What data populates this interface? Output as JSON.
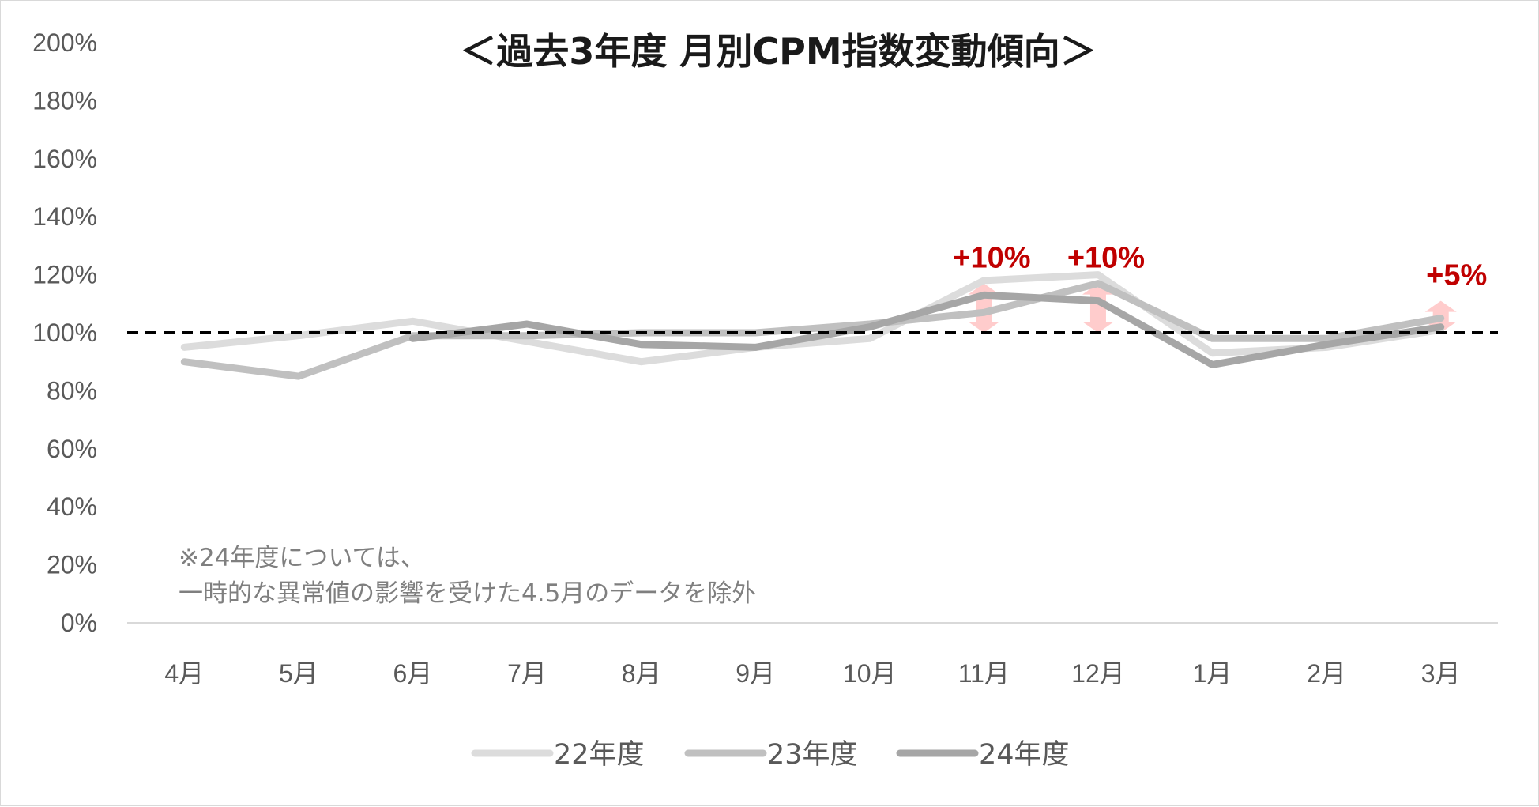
{
  "chart_data": {
    "type": "line",
    "title": "＜過去3年度 月別CPM指数変動傾向＞",
    "xlabel": "",
    "ylabel": "",
    "categories": [
      "4月",
      "5月",
      "6月",
      "7月",
      "8月",
      "9月",
      "10月",
      "11月",
      "12月",
      "1月",
      "2月",
      "3月"
    ],
    "ylim": [
      0,
      200
    ],
    "yticks": [
      "0%",
      "20%",
      "40%",
      "60%",
      "80%",
      "100%",
      "120%",
      "140%",
      "160%",
      "180%",
      "200%"
    ],
    "grid": false,
    "legend_position": "bottom",
    "series": [
      {
        "name": "22年度",
        "color": "#dcdcdc",
        "values": [
          95,
          99,
          104,
          97,
          90,
          95,
          98,
          118,
          120,
          93,
          95,
          101
        ]
      },
      {
        "name": "23年度",
        "color": "#c0c0c0",
        "values": [
          90,
          85,
          99,
          99,
          100,
          100,
          103,
          107,
          117,
          98,
          98,
          105
        ]
      },
      {
        "name": "24年度",
        "color": "#a6a6a6",
        "values": [
          null,
          null,
          98,
          103,
          96,
          95,
          102,
          113,
          111,
          89,
          96,
          102
        ]
      }
    ],
    "reference_line": {
      "value": 100,
      "style": "dashed",
      "color": "#000000"
    },
    "annotations": [
      {
        "text": "+10%",
        "category": "11月",
        "from": 100,
        "to": 117
      },
      {
        "text": "+10%",
        "category": "12月",
        "from": 100,
        "to": 117
      },
      {
        "text": "+5%",
        "category": "3月",
        "from": 100,
        "to": 111
      }
    ],
    "note_lines": [
      "※24年度については、",
      "一時的な異常値の影響を受けた4.5月のデータを除外"
    ]
  }
}
